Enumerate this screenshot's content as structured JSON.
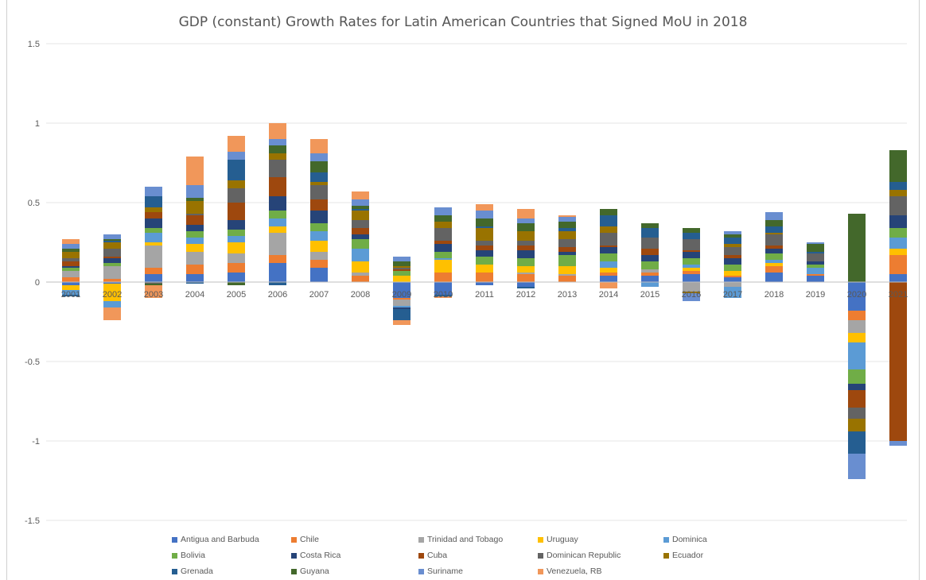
{
  "chart_data": {
    "type": "bar",
    "stacked": true,
    "title": "GDP (constant) Growth Rates for Latin American Countries that Signed MoU in 2018",
    "xlabel": "",
    "ylabel": "",
    "ylim": [
      -1.5,
      1.5
    ],
    "yticks": [
      1.5,
      1,
      0.5,
      0,
      -0.5,
      -1,
      -1.5
    ],
    "ytick_labels": [
      "1.5",
      "1",
      "0.5",
      "0",
      "-0.5",
      "-1",
      "-1.5"
    ],
    "grid": true,
    "legend_position": "bottom",
    "categories": [
      "2001",
      "2002",
      "2003",
      "2004",
      "2005",
      "2006",
      "2007",
      "2008",
      "2009",
      "2010",
      "2011",
      "2012",
      "2013",
      "2014",
      "2015",
      "2016",
      "2017",
      "2018",
      "2019",
      "2020",
      "2021"
    ],
    "series": [
      {
        "name": "Antigua and Barbuda",
        "color": "#4472C4",
        "values": [
          -0.02,
          -0.01,
          0.05,
          0.05,
          0.06,
          0.12,
          0.09,
          0.0,
          -0.1,
          -0.08,
          -0.02,
          -0.03,
          0.0,
          0.04,
          0.04,
          0.05,
          0.03,
          0.06,
          0.04,
          -0.18,
          0.05
        ]
      },
      {
        "name": "Chile",
        "color": "#ED7D31",
        "values": [
          0.03,
          0.02,
          0.04,
          0.06,
          0.06,
          0.05,
          0.05,
          0.04,
          -0.01,
          0.06,
          0.06,
          0.05,
          0.04,
          0.02,
          0.02,
          0.02,
          0.01,
          0.04,
          0.01,
          -0.06,
          0.12
        ]
      },
      {
        "name": "Trinidad and Tobago",
        "color": "#A5A5A5",
        "values": [
          0.04,
          0.08,
          0.14,
          0.08,
          0.06,
          0.14,
          0.05,
          0.02,
          -0.04,
          0.0,
          0.0,
          0.01,
          0.01,
          0.0,
          0.02,
          -0.06,
          -0.03,
          0.0,
          0.0,
          -0.08,
          0.0
        ]
      },
      {
        "name": "Uruguay",
        "color": "#FFC000",
        "values": [
          -0.03,
          -0.11,
          0.02,
          0.05,
          0.07,
          0.04,
          0.07,
          0.07,
          0.04,
          0.08,
          0.05,
          0.04,
          0.05,
          0.03,
          0.0,
          0.02,
          0.03,
          0.02,
          0.0,
          -0.06,
          0.04
        ]
      },
      {
        "name": "Dominica",
        "color": "#5B9BD5",
        "values": [
          -0.03,
          -0.04,
          0.06,
          0.04,
          0.04,
          0.05,
          0.06,
          0.08,
          -0.01,
          0.01,
          0.0,
          0.0,
          0.0,
          0.04,
          -0.03,
          0.02,
          -0.07,
          0.02,
          0.04,
          -0.17,
          0.07
        ]
      },
      {
        "name": "Bolivia",
        "color": "#70AD47",
        "values": [
          0.02,
          0.02,
          0.03,
          0.04,
          0.04,
          0.05,
          0.05,
          0.06,
          0.03,
          0.04,
          0.05,
          0.05,
          0.07,
          0.05,
          0.05,
          0.04,
          0.04,
          0.04,
          0.02,
          -0.09,
          0.06
        ]
      },
      {
        "name": "Costa Rica",
        "color": "#264478",
        "values": [
          0.01,
          0.03,
          0.06,
          0.04,
          0.06,
          0.09,
          0.08,
          0.03,
          -0.01,
          0.05,
          0.04,
          0.05,
          0.02,
          0.04,
          0.04,
          0.04,
          0.04,
          0.03,
          0.02,
          -0.04,
          0.08
        ]
      },
      {
        "name": "Cuba",
        "color": "#9E480E",
        "values": [
          0.03,
          0.01,
          0.04,
          0.06,
          0.11,
          0.12,
          0.07,
          0.04,
          0.01,
          0.02,
          0.03,
          0.03,
          0.03,
          0.01,
          0.04,
          0.01,
          0.02,
          0.02,
          0.0,
          -0.11,
          -1.0
        ]
      },
      {
        "name": "Dominican Republic",
        "color": "#636363",
        "values": [
          0.02,
          0.05,
          -0.01,
          0.01,
          0.09,
          0.11,
          0.09,
          0.05,
          0.01,
          0.08,
          0.03,
          0.03,
          0.05,
          0.08,
          0.07,
          0.07,
          0.05,
          0.07,
          0.05,
          -0.07,
          0.12
        ]
      },
      {
        "name": "Ecuador",
        "color": "#997300",
        "values": [
          0.04,
          0.04,
          0.03,
          0.08,
          0.05,
          0.04,
          0.02,
          0.06,
          0.01,
          0.04,
          0.08,
          0.06,
          0.05,
          0.04,
          0.0,
          -0.01,
          0.02,
          0.01,
          0.0,
          -0.08,
          0.04
        ]
      },
      {
        "name": "Grenada",
        "color": "#255E91",
        "values": [
          -0.01,
          0.01,
          0.07,
          -0.01,
          0.13,
          -0.02,
          0.06,
          0.01,
          -0.07,
          -0.01,
          0.01,
          -0.01,
          0.02,
          0.07,
          0.06,
          0.04,
          0.04,
          0.04,
          0.01,
          -0.14,
          0.05
        ]
      },
      {
        "name": "Guyana",
        "color": "#43682B",
        "values": [
          0.02,
          0.01,
          -0.01,
          0.02,
          -0.02,
          0.05,
          0.07,
          0.02,
          0.03,
          0.04,
          0.05,
          0.05,
          0.04,
          0.04,
          0.03,
          0.03,
          0.02,
          0.04,
          0.05,
          0.43,
          0.2
        ]
      },
      {
        "name": "Suriname",
        "color": "#698ED0",
        "values": [
          0.03,
          0.03,
          0.06,
          0.08,
          0.05,
          0.04,
          0.05,
          0.04,
          0.03,
          0.05,
          0.05,
          0.03,
          0.03,
          0.0,
          0.0,
          -0.05,
          0.02,
          0.05,
          0.01,
          -0.16,
          -0.03
        ]
      },
      {
        "name": "Venezuela, RB",
        "color": "#F1975A",
        "values": [
          0.03,
          -0.08,
          -0.08,
          0.18,
          0.1,
          0.1,
          0.09,
          0.05,
          -0.03,
          -0.01,
          0.04,
          0.06,
          0.01,
          -0.04,
          0.0,
          0.0,
          0.0,
          0.0,
          0.0,
          0.0,
          0.0
        ]
      }
    ]
  }
}
